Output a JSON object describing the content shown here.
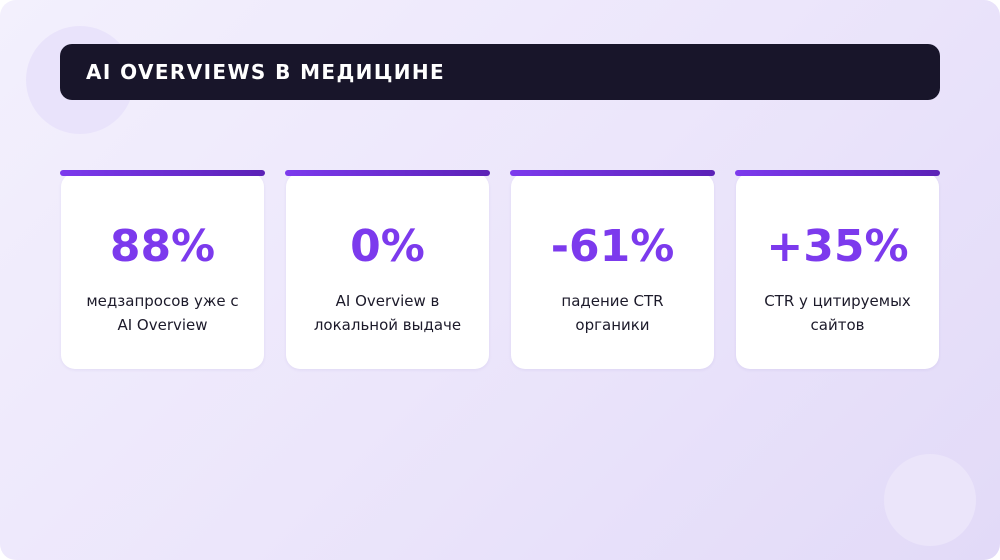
{
  "header": {
    "title": "AI OVERVIEWS В МЕДИЦИНЕ"
  },
  "cards": [
    {
      "value": "88%",
      "label": "медзапросов уже с AI Overview"
    },
    {
      "value": "0%",
      "label": "AI Overview в локальной выдаче"
    },
    {
      "value": "-61%",
      "label": "падение CTR органики"
    },
    {
      "value": "+35%",
      "label": "CTR у цитируемых сайтов"
    }
  ]
}
